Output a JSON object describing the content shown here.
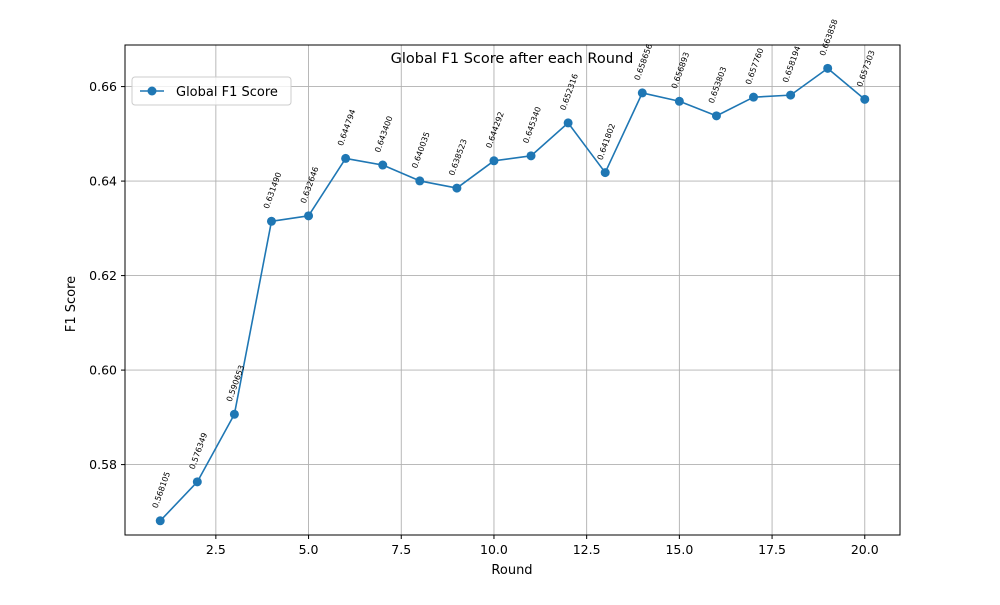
{
  "chart_data": {
    "type": "line",
    "title": "Global F1 Score after each Round",
    "xlabel": "Round",
    "ylabel": "F1 Score",
    "xlim": [
      0.05,
      20.95
    ],
    "ylim": [
      0.5651,
      0.6688
    ],
    "grid": true,
    "legend_position": "top-left",
    "x_ticks": [
      2.5,
      5.0,
      7.5,
      10.0,
      12.5,
      15.0,
      17.5,
      20.0
    ],
    "x_tick_labels": [
      "2.5",
      "5.0",
      "7.5",
      "10.0",
      "12.5",
      "15.0",
      "17.5",
      "20.0"
    ],
    "y_ticks": [
      0.58,
      0.6,
      0.62,
      0.64,
      0.66
    ],
    "y_tick_labels": [
      "0.58",
      "0.60",
      "0.62",
      "0.64",
      "0.66"
    ],
    "series": [
      {
        "name": "Global F1 Score",
        "color": "#1f77b4",
        "x": [
          1,
          2,
          3,
          4,
          5,
          6,
          7,
          8,
          9,
          10,
          11,
          12,
          13,
          14,
          15,
          16,
          17,
          18,
          19,
          20
        ],
        "values": [
          0.568105,
          0.576349,
          0.590653,
          0.63149,
          0.632646,
          0.644794,
          0.6434,
          0.640035,
          0.638523,
          0.644292,
          0.64534,
          0.652316,
          0.641802,
          0.658656,
          0.656893,
          0.653803,
          0.65776,
          0.658194,
          0.663858,
          0.657303
        ],
        "labels": [
          "0.568105",
          "0.576349",
          "0.590653",
          "0.631490",
          "0.632646",
          "0.644794",
          "0.643400",
          "0.640035",
          "0.638523",
          "0.644292",
          "0.645340",
          "0.652316",
          "0.641802",
          "0.658656",
          "0.656893",
          "0.653803",
          "0.657760",
          "0.658194",
          "0.663858",
          "0.657303"
        ]
      }
    ]
  }
}
